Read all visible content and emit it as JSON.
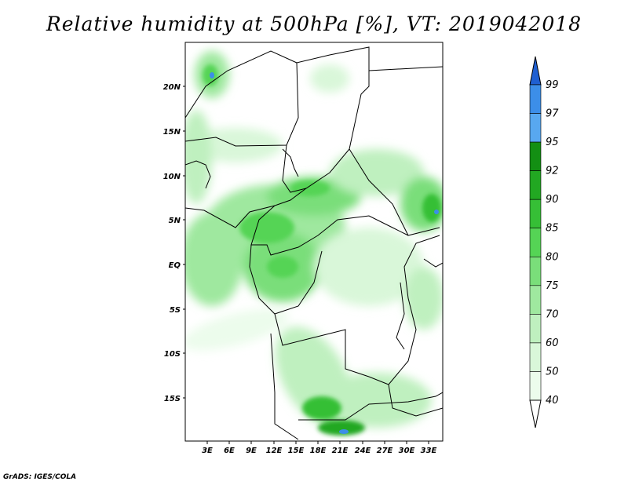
{
  "title": "Relative humidity at 500hPa [%], VT: 2019042018",
  "credit": "GrADS: IGES/COLA",
  "map": {
    "lat_labels": [
      "20N",
      "15N",
      "10N",
      "5N",
      "EQ",
      "5S",
      "10S",
      "15S"
    ],
    "lon_labels": [
      "3E",
      "6E",
      "9E",
      "12E",
      "15E",
      "18E",
      "21E",
      "24E",
      "27E",
      "30E",
      "33E"
    ]
  },
  "colorbar": {
    "levels": [
      "99",
      "97",
      "95",
      "92",
      "90",
      "85",
      "80",
      "75",
      "70",
      "60",
      "50",
      "40"
    ],
    "colors": [
      "#1f5fd1",
      "#3c8ee8",
      "#58a8f0",
      "#138f13",
      "#22a822",
      "#36bf36",
      "#55d455",
      "#7ade7a",
      "#9fe89f",
      "#bff0bf",
      "#d9f7d9",
      "#ecfcec"
    ]
  }
}
